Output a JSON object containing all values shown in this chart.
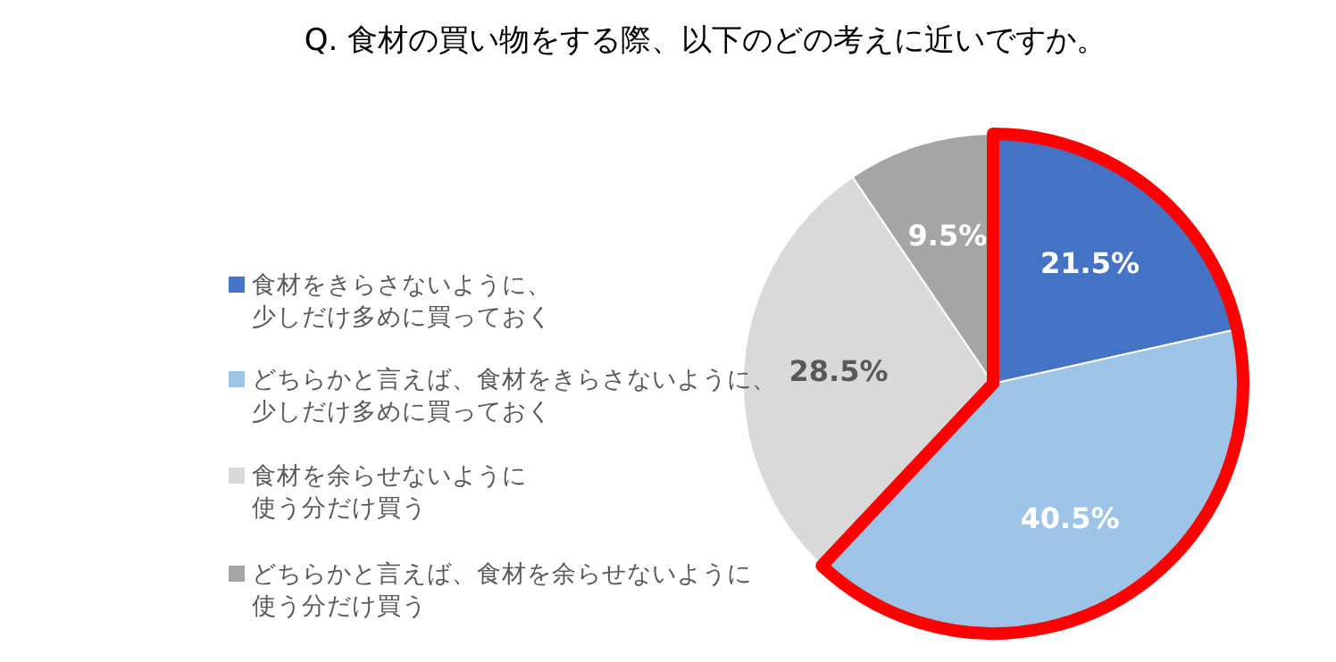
{
  "chart_data": {
    "type": "pie",
    "title": "Q. 食材の買い物をする際、以下のどの考えに近いですか。",
    "categories": [
      "食材をきらさないように、少しだけ多めに買っておく",
      "どちらかと言えば、食材をきらさないように、少しだけ多めに買っておく",
      "食材を余らせないように使う分だけ買う",
      "どちらかと言えば、食材を余らせないように使う分だけ買う"
    ],
    "values": [
      21.5,
      40.5,
      28.5,
      9.5
    ],
    "colors": [
      "#4472c4",
      "#9dc3e6",
      "#d9d9d9",
      "#a5a5a5"
    ],
    "value_labels": [
      "21.5%",
      "40.5%",
      "28.5%",
      "9.5%"
    ],
    "legend": "left"
  }
}
